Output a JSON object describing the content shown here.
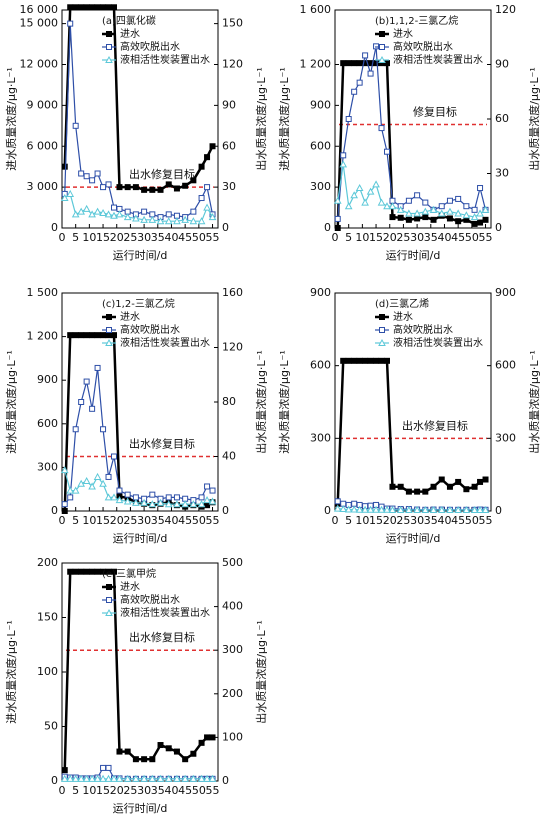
{
  "chart_data": [
    {
      "type": "line",
      "title": "(a)四氯化碳",
      "xlabel": "运行时间/d",
      "ylabel": "进水质量浓度/μg·L⁻¹",
      "y2label": "出水质量浓度/μg·L⁻¹",
      "x": [
        1,
        3,
        5,
        7,
        9,
        11,
        13,
        15,
        17,
        19,
        21,
        24,
        27,
        30,
        33,
        36,
        39,
        42,
        45,
        48,
        51,
        53,
        55
      ],
      "xlim": [
        0,
        57
      ],
      "xticks": [
        0,
        5,
        10,
        15,
        20,
        25,
        30,
        35,
        40,
        45,
        50,
        55
      ],
      "ylim": [
        0,
        16000
      ],
      "yticks": [
        0,
        {
          "value": 3000,
          "label": "3 000"
        },
        {
          "value": 6000,
          "label": "6 000"
        },
        {
          "value": 9000,
          "label": "9 000"
        },
        {
          "value": 12000,
          "label": "12 000"
        },
        {
          "value": 15000,
          "label": "15 000"
        },
        {
          "value": 16000,
          "label": "16 000"
        }
      ],
      "y2lim": [
        0,
        160
      ],
      "y2ticks": [
        0,
        30,
        60,
        90,
        120,
        150
      ],
      "target": {
        "value": 30,
        "label": "出水修复目标",
        "axis": "y2",
        "color": "#e03030"
      },
      "series": [
        {
          "name": "进水",
          "color": "#000000",
          "axis": "y",
          "values": [
            4500,
            16200,
            16200,
            16200,
            16200,
            16200,
            16200,
            16200,
            16200,
            16200,
            3000,
            3000,
            3000,
            2800,
            2800,
            2800,
            3200,
            2900,
            3100,
            3500,
            4500,
            5200,
            6000
          ]
        },
        {
          "name": "高效吹脱出水",
          "color": "#2e4fa8",
          "axis": "y2",
          "values": [
            25,
            150,
            75,
            40,
            38,
            35,
            40,
            30,
            32,
            15,
            14,
            12,
            10,
            12,
            10,
            8,
            10,
            9,
            8,
            12,
            22,
            30,
            10
          ]
        },
        {
          "name": "液相活性炭装置出水",
          "color": "#5cc8d8",
          "axis": "y2",
          "values": [
            22,
            25,
            10,
            12,
            14,
            10,
            12,
            11,
            10,
            9,
            10,
            8,
            7,
            6,
            6,
            5,
            5,
            5,
            6,
            5,
            5,
            15,
            8
          ]
        }
      ]
    },
    {
      "type": "line",
      "title": "(b)1,1,2-三氯乙烷",
      "xlabel": "运行时间/d",
      "ylabel": "进水质量浓度/μg·L⁻¹",
      "y2label": "出水质量浓度/μg·L⁻¹",
      "x": [
        1,
        3,
        5,
        7,
        9,
        11,
        13,
        15,
        17,
        19,
        21,
        24,
        27,
        30,
        33,
        36,
        39,
        42,
        45,
        48,
        51,
        53,
        55
      ],
      "xlim": [
        0,
        57
      ],
      "xticks": [
        0,
        5,
        10,
        15,
        20,
        25,
        30,
        35,
        40,
        45,
        50,
        55
      ],
      "ylim": [
        0,
        1600
      ],
      "yticks": [
        0,
        300,
        600,
        900,
        {
          "value": 1200,
          "label": "1 200"
        },
        {
          "value": 1600,
          "label": "1 600"
        }
      ],
      "y2lim": [
        0,
        120
      ],
      "y2ticks": [
        0,
        30,
        60,
        90,
        120
      ],
      "target": {
        "value": 57,
        "label": "修复目标",
        "axis": "y2",
        "color": "#e03030"
      },
      "series": [
        {
          "name": "进水",
          "color": "#000000",
          "axis": "y",
          "values": [
            0,
            1210,
            1210,
            1210,
            1210,
            1210,
            1210,
            1210,
            1210,
            1210,
            80,
            75,
            60,
            70,
            80,
            60,
            90,
            70,
            50,
            60,
            30,
            40,
            60
          ]
        },
        {
          "name": "高效吹脱出水",
          "color": "#2e4fa8",
          "axis": "y2",
          "values": [
            5,
            40,
            60,
            75,
            80,
            95,
            85,
            100,
            55,
            42,
            15,
            12,
            15,
            18,
            14,
            10,
            12,
            15,
            16,
            12,
            10,
            22,
            10
          ]
        },
        {
          "name": "液相活性炭装置出水",
          "color": "#5cc8d8",
          "axis": "y2",
          "values": [
            15,
            35,
            12,
            18,
            22,
            14,
            20,
            24,
            14,
            12,
            12,
            10,
            8,
            8,
            9,
            10,
            8,
            9,
            8,
            7,
            6,
            8,
            10
          ]
        }
      ]
    },
    {
      "type": "line",
      "title": "(c)1,2-三氯乙烷",
      "xlabel": "运行时间/d",
      "ylabel": "进水质量浓度/μg·L⁻¹",
      "y2label": "出水质量浓度/μg·L⁻¹",
      "x": [
        1,
        3,
        5,
        7,
        9,
        11,
        13,
        15,
        17,
        19,
        21,
        24,
        27,
        30,
        33,
        36,
        39,
        42,
        45,
        48,
        51,
        53,
        55
      ],
      "xlim": [
        0,
        57
      ],
      "xticks": [
        0,
        5,
        10,
        15,
        20,
        25,
        30,
        35,
        40,
        45,
        50,
        55
      ],
      "ylim": [
        0,
        1500
      ],
      "yticks": [
        0,
        300,
        600,
        900,
        {
          "value": 1200,
          "label": "1 200"
        },
        {
          "value": 1500,
          "label": "1 500"
        }
      ],
      "y2lim": [
        0,
        160
      ],
      "y2ticks": [
        0,
        40,
        80,
        120,
        160
      ],
      "target": {
        "value": 40,
        "label": "出水修复目标",
        "axis": "y2",
        "color": "#e03030"
      },
      "series": [
        {
          "name": "进水",
          "color": "#000000",
          "axis": "y",
          "values": [
            0,
            1210,
            1210,
            1210,
            1210,
            1210,
            1210,
            1210,
            1210,
            1210,
            100,
            90,
            60,
            50,
            40,
            50,
            60,
            40,
            30,
            40,
            30,
            40,
            60
          ]
        },
        {
          "name": "高效吹脱出水",
          "color": "#2e4fa8",
          "axis": "y2",
          "values": [
            5,
            10,
            60,
            80,
            95,
            75,
            105,
            60,
            25,
            40,
            15,
            12,
            10,
            9,
            12,
            9,
            10,
            10,
            9,
            8,
            10,
            18,
            15
          ]
        },
        {
          "name": "液相活性炭装置出水",
          "color": "#5cc8d8",
          "axis": "y2",
          "values": [
            30,
            15,
            15,
            20,
            22,
            18,
            25,
            20,
            10,
            10,
            8,
            7,
            6,
            6,
            5,
            6,
            5,
            5,
            5,
            5,
            5,
            8,
            7
          ]
        }
      ]
    },
    {
      "type": "line",
      "title": "(d)三氯乙烯",
      "xlabel": "运行时间/d",
      "ylabel": "进水质量浓度/μg·L⁻¹",
      "y2label": "出水质量浓度/μg·L⁻¹",
      "x": [
        1,
        3,
        5,
        7,
        9,
        11,
        13,
        15,
        17,
        19,
        21,
        24,
        27,
        30,
        33,
        36,
        39,
        42,
        45,
        48,
        51,
        53,
        55
      ],
      "xlim": [
        0,
        57
      ],
      "xticks": [
        0,
        5,
        10,
        15,
        20,
        25,
        30,
        35,
        40,
        45,
        50,
        55
      ],
      "ylim": [
        0,
        900
      ],
      "yticks": [
        0,
        300,
        600,
        900
      ],
      "y2lim": [
        0,
        900
      ],
      "y2ticks": [
        0,
        300,
        600,
        900
      ],
      "target": {
        "value": 300,
        "label": "出水修复目标",
        "axis": "y2",
        "color": "#e03030"
      },
      "series": [
        {
          "name": "进水",
          "color": "#000000",
          "axis": "y",
          "values": [
            30,
            620,
            620,
            620,
            620,
            620,
            620,
            620,
            620,
            620,
            100,
            100,
            80,
            80,
            80,
            100,
            130,
            100,
            120,
            90,
            100,
            120,
            130
          ]
        },
        {
          "name": "高效吹脱出水",
          "color": "#2e4fa8",
          "axis": "y2",
          "values": [
            40,
            30,
            25,
            30,
            25,
            20,
            22,
            25,
            18,
            10,
            10,
            8,
            8,
            6,
            5,
            6,
            6,
            5,
            5,
            5,
            5,
            6,
            5
          ]
        },
        {
          "name": "液相活性炭装置出水",
          "color": "#5cc8d8",
          "axis": "y2",
          "values": [
            10,
            8,
            6,
            6,
            5,
            5,
            5,
            5,
            5,
            5,
            4,
            4,
            4,
            4,
            4,
            4,
            4,
            4,
            4,
            4,
            4,
            4,
            4
          ]
        }
      ]
    },
    {
      "type": "line",
      "title": "(e)三氯甲烷",
      "xlabel": "运行时间/d",
      "ylabel": "进水质量浓度/μg·L⁻¹",
      "y2label": "出水质量浓度/μg·L⁻¹",
      "x": [
        1,
        3,
        5,
        7,
        9,
        11,
        13,
        15,
        17,
        19,
        21,
        24,
        27,
        30,
        33,
        36,
        39,
        42,
        45,
        48,
        51,
        53,
        55
      ],
      "xlim": [
        0,
        57
      ],
      "xticks": [
        0,
        5,
        10,
        15,
        20,
        25,
        30,
        35,
        40,
        45,
        50,
        55
      ],
      "ylim": [
        0,
        200
      ],
      "yticks": [
        0,
        50,
        100,
        150,
        200
      ],
      "y2lim": [
        0,
        500
      ],
      "y2ticks": [
        0,
        100,
        200,
        300,
        400,
        500
      ],
      "target": {
        "value": 300,
        "label": "出水修复目标",
        "axis": "y2",
        "color": "#e03030"
      },
      "series": [
        {
          "name": "进水",
          "color": "#000000",
          "axis": "y",
          "values": [
            10,
            192,
            192,
            192,
            192,
            192,
            192,
            192,
            192,
            192,
            27,
            27,
            20,
            20,
            20,
            33,
            30,
            27,
            20,
            25,
            35,
            40,
            40
          ]
        },
        {
          "name": "高效吹脱出水",
          "color": "#2e4fa8",
          "axis": "y2",
          "values": [
            10,
            8,
            8,
            6,
            6,
            6,
            8,
            30,
            30,
            6,
            6,
            5,
            5,
            5,
            5,
            5,
            5,
            5,
            5,
            5,
            5,
            5,
            5
          ]
        },
        {
          "name": "液相活性炭装置出水",
          "color": "#5cc8d8",
          "axis": "y2",
          "values": [
            5,
            5,
            5,
            5,
            5,
            5,
            5,
            5,
            5,
            5,
            5,
            5,
            5,
            5,
            5,
            5,
            5,
            5,
            5,
            5,
            5,
            5,
            5
          ]
        }
      ]
    }
  ]
}
